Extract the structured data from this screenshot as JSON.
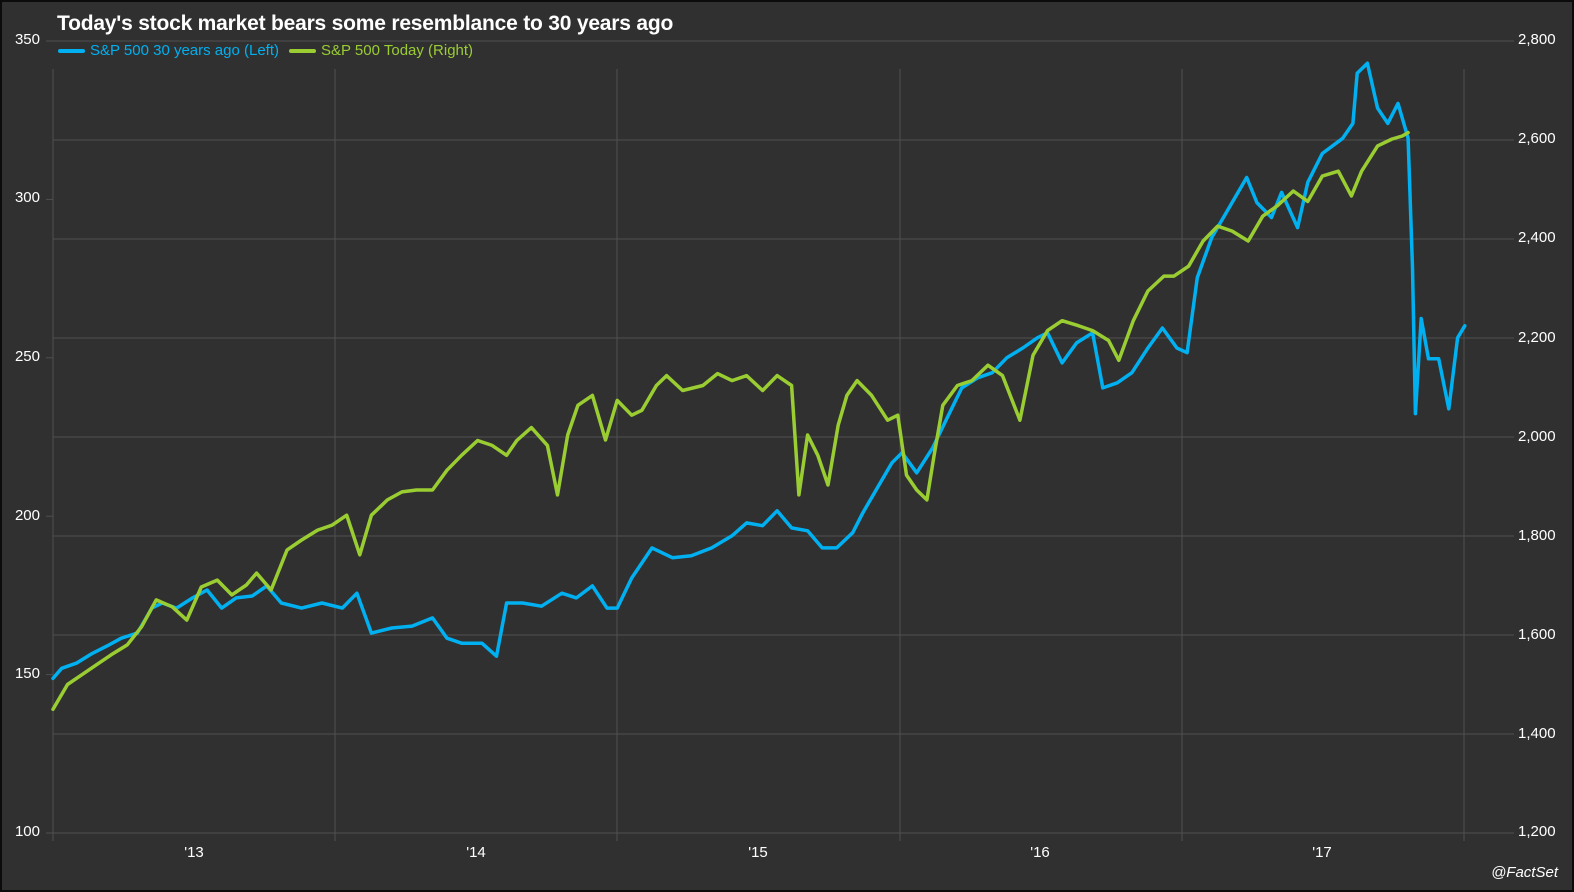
{
  "colors": {
    "background": "#303030",
    "grid": "#505050",
    "series_past": "#00b0f0",
    "series_today": "#9acd32",
    "text": "#ffffff"
  },
  "chart_data": {
    "type": "line",
    "title": "Today's stock market bears some resemblance to 30 years ago",
    "credit": "@FactSet",
    "legend": [
      "S&P 500 30 years ago (Left)",
      "S&P 500 Today (Right)"
    ],
    "legend_position": "top-left",
    "grid": true,
    "x_ticks": [
      "'13",
      "'14",
      "'15",
      "'16",
      "'17"
    ],
    "x_range": [
      "mid-2012",
      "late-2017"
    ],
    "left_axis": {
      "label": "S&P 500 30 years ago",
      "ticks": [
        "350",
        "300",
        "250",
        "200",
        "150",
        "100"
      ],
      "ylim": [
        100,
        350
      ]
    },
    "right_axis": {
      "label": "S&P 500 Today",
      "ticks": [
        "2,800",
        "2,600",
        "2,400",
        "2,200",
        "2,000",
        "1,800",
        "1,600",
        "1,400",
        "1,200"
      ],
      "ylim": [
        1200,
        2800
      ]
    },
    "series": [
      {
        "name": "S&P 500 30 years ago (Left)",
        "axis": "left",
        "x": [
          0,
          0.006,
          0.016,
          0.027,
          0.037,
          0.047,
          0.058,
          0.068,
          0.075,
          0.085,
          0.096,
          0.106,
          0.116,
          0.126,
          0.137,
          0.147,
          0.157,
          0.171,
          0.185,
          0.199,
          0.209,
          0.219,
          0.233,
          0.247,
          0.261,
          0.271,
          0.281,
          0.295,
          0.305,
          0.312,
          0.323,
          0.336,
          0.35,
          0.36,
          0.371,
          0.381,
          0.388,
          0.398,
          0.412,
          0.426,
          0.439,
          0.453,
          0.467,
          0.477,
          0.488,
          0.498,
          0.508,
          0.519,
          0.529,
          0.539,
          0.55,
          0.557,
          0.567,
          0.577,
          0.584,
          0.594,
          0.605,
          0.615,
          0.625,
          0.636,
          0.646,
          0.656,
          0.667,
          0.677,
          0.684,
          0.694,
          0.704,
          0.715,
          0.722,
          0.732,
          0.742,
          0.753,
          0.763,
          0.773,
          0.78,
          0.787,
          0.797,
          0.807,
          0.821,
          0.828,
          0.838,
          0.845,
          0.856,
          0.863,
          0.873,
          0.887,
          0.894,
          0.897,
          0.904,
          0.911,
          0.918,
          0.925,
          0.932,
          0.935,
          0.937,
          0.941,
          0.946,
          0.953,
          0.96,
          0.966,
          0.971
        ],
        "values": [
          148.8,
          152,
          153.6,
          156.7,
          159,
          161.5,
          163.1,
          171,
          172.6,
          171,
          174.2,
          176.7,
          171,
          174.2,
          174.8,
          178,
          172.6,
          171,
          172.6,
          171,
          175.7,
          163.1,
          164.7,
          165.3,
          167.9,
          161.5,
          159.9,
          159.9,
          155.8,
          172.6,
          172.6,
          171.6,
          175.7,
          174.2,
          178,
          171,
          171,
          180.5,
          190,
          186.9,
          187.5,
          190,
          193.8,
          197.9,
          197,
          201.7,
          196.3,
          195.4,
          190,
          190,
          194.8,
          201.1,
          209,
          216.9,
          220,
          213.7,
          221.6,
          231.1,
          240.5,
          243.7,
          245.3,
          250,
          253.1,
          256.3,
          257.9,
          248.4,
          254.7,
          257.9,
          240.5,
          242.1,
          245.3,
          253.1,
          259.4,
          253.1,
          251.6,
          275.3,
          288,
          295.9,
          306.9,
          299,
          294.3,
          302.2,
          291.1,
          305.4,
          314.5,
          319.3,
          324,
          339.8,
          343,
          328.8,
          324,
          330.3,
          319.3,
          278.3,
          232.4,
          262.4,
          249.7,
          249.7,
          233.9,
          256.3,
          260.1
        ]
      },
      {
        "name": "S&P 500 Today (Right)",
        "axis": "right",
        "x": [
          0,
          0.01,
          0.02,
          0.03,
          0.04,
          0.051,
          0.061,
          0.071,
          0.082,
          0.092,
          0.102,
          0.113,
          0.123,
          0.133,
          0.14,
          0.15,
          0.161,
          0.171,
          0.182,
          0.192,
          0.202,
          0.211,
          0.219,
          0.23,
          0.24,
          0.25,
          0.261,
          0.271,
          0.281,
          0.292,
          0.302,
          0.312,
          0.319,
          0.329,
          0.34,
          0.347,
          0.354,
          0.361,
          0.371,
          0.38,
          0.388,
          0.398,
          0.405,
          0.415,
          0.422,
          0.433,
          0.447,
          0.457,
          0.467,
          0.477,
          0.488,
          0.498,
          0.508,
          0.513,
          0.519,
          0.526,
          0.533,
          0.54,
          0.546,
          0.553,
          0.563,
          0.574,
          0.581,
          0.587,
          0.594,
          0.601,
          0.606,
          0.612,
          0.622,
          0.632,
          0.643,
          0.653,
          0.665,
          0.674,
          0.684,
          0.694,
          0.705,
          0.715,
          0.726,
          0.733,
          0.743,
          0.753,
          0.764,
          0.771,
          0.781,
          0.791,
          0.801,
          0.811,
          0.822,
          0.832,
          0.842,
          0.853,
          0.863,
          0.873,
          0.884,
          0.893,
          0.9,
          0.911,
          0.921,
          0.928,
          0.932
        ],
        "values": [
          1450,
          1500,
          1520,
          1540,
          1560,
          1580,
          1617,
          1671,
          1657,
          1630,
          1697,
          1711,
          1681,
          1701,
          1725,
          1691,
          1772,
          1792,
          1812,
          1822,
          1842,
          1762,
          1842,
          1873,
          1889,
          1893,
          1893,
          1933,
          1963,
          1993,
          1983,
          1963,
          1993,
          2019,
          1983,
          1883,
          2004,
          2064,
          2084,
          1994,
          2074,
          2044,
          2054,
          2104,
          2124,
          2094,
          2104,
          2128,
          2114,
          2124,
          2094,
          2124,
          2104,
          1883,
          2004,
          1963,
          1903,
          2024,
          2084,
          2114,
          2084,
          2034,
          2044,
          1923,
          1893,
          1873,
          1963,
          2064,
          2104,
          2114,
          2145,
          2124,
          2034,
          2165,
          2215,
          2235,
          2225,
          2215,
          2195,
          2155,
          2235,
          2295,
          2325,
          2325,
          2345,
          2396,
          2426,
          2416,
          2396,
          2446,
          2467,
          2497,
          2476,
          2527,
          2537,
          2487,
          2537,
          2588,
          2602,
          2608,
          2615
        ]
      }
    ]
  }
}
